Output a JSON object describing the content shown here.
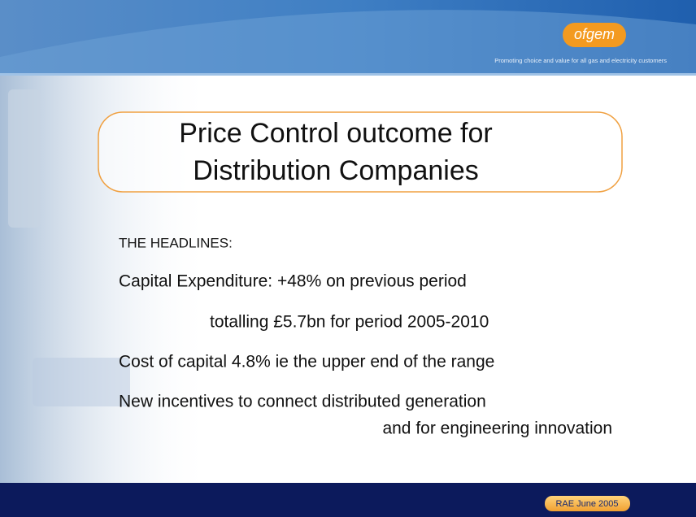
{
  "header": {
    "logo": "ofgem",
    "tagline": "Promoting choice and value for all gas and electricity customers"
  },
  "title": {
    "lines": [
      "Price Control outcome for",
      "Distribution Companies"
    ]
  },
  "body": {
    "heading": "THE HEADLINES:",
    "items": [
      "Capital Expenditure: +48% on previous period",
      "totalling £5.7bn for period 2005-2010",
      "Cost of capital 4.8% ie the upper end of the range",
      "New incentives to connect distributed generation",
      "and for engineering innovation"
    ]
  },
  "footer": {
    "label": "RAE June 2005"
  }
}
